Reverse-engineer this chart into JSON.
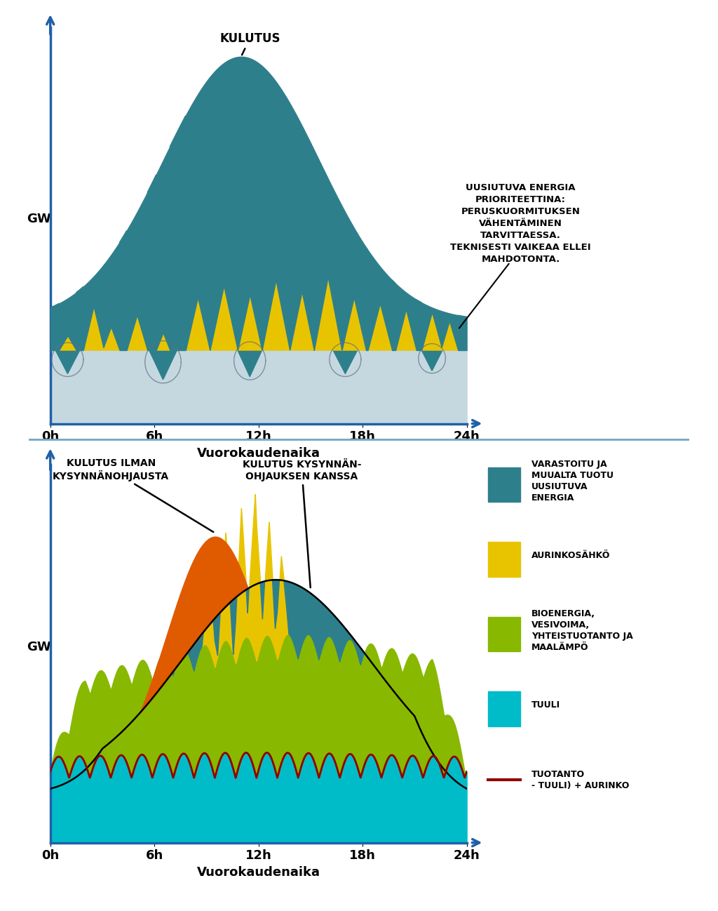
{
  "colors": {
    "teal": "#2e7f8c",
    "yellow": "#e8c400",
    "light_gray": "#c5d8e0",
    "orange": "#e05a00",
    "green": "#88b800",
    "cyan": "#00bcc8",
    "dark_red": "#900000",
    "axis_blue": "#2060a8",
    "background": "#ffffff",
    "separator": "#70a8c0"
  },
  "top_annotation": "UUSIUTUVA ENERGIA\nPRIORITEETTINA:\nPERUSKUORMITUKSEN\nVÄHENTÄMINEN\nTARVITTAESSA.\nTEKNISESTI VAIKEAA ELLEI\nMAHDOTONTA.",
  "top_label_kulutus": "KULUTUS",
  "bottom_label1": "KULUTUS ILMAN\nKYSYNNÄNOHJAUSTA",
  "bottom_label2": "KULUTUS KYSYNNÄN-\nOHJAUKSEN KANSSA",
  "xlabel": "Vuorokaudenaika",
  "ylabel": "GW",
  "xticks": [
    "0h",
    "6h",
    "12h",
    "18h",
    "24h"
  ],
  "legend_items": [
    {
      "color": "#2e7f8c",
      "label": "VARASTOITU JA\nMUUALTA TUOTU\nUUSIUTUVA\nENERGIA"
    },
    {
      "color": "#e8c400",
      "label": "AURINKOSÄHKÖ"
    },
    {
      "color": "#88b800",
      "label": "BIOENERGIA,\nVESIVOIMA,\nYHTEISTUOTANTO JA\nMAALÄMPÖ"
    },
    {
      "color": "#00bcc8",
      "label": "TUULI"
    },
    {
      "color": "#900000",
      "label": "TUOTANTO\n- TUULI) + AURINKO",
      "linestyle": "line"
    }
  ]
}
